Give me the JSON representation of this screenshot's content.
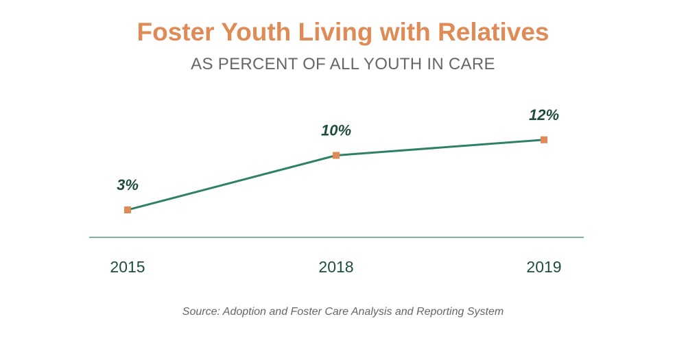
{
  "chart_data": {
    "type": "line",
    "title": "Foster Youth Living with Relatives",
    "subtitle": "AS PERCENT OF ALL YOUTH IN CARE",
    "categories": [
      "2015",
      "2018",
      "2019"
    ],
    "values": [
      3,
      10,
      12
    ],
    "data_labels": [
      "3%",
      "10%",
      "12%"
    ],
    "xlabel": "",
    "ylabel": "",
    "ylim": [
      0,
      14
    ],
    "grid": false,
    "line_color": "#2e8068",
    "marker_color": "#e08a55",
    "label_color": "#1f4d3c",
    "source": "Source: Adoption and Foster Care Analysis and Reporting System"
  }
}
